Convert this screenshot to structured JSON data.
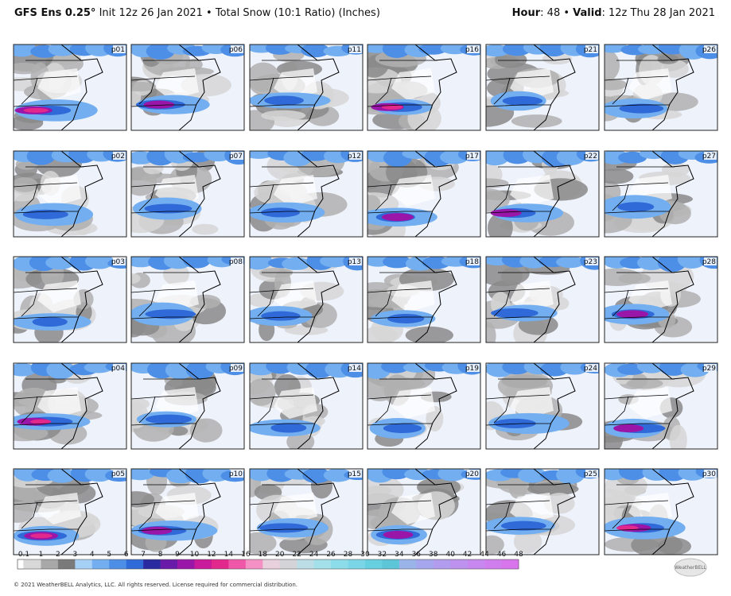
{
  "header": {
    "model": "GFS Ens 0.25°",
    "description": "Init 12z 26 Jan 2021 • Total Snow (10:1 Ratio) (Inches)",
    "hour_label": "Hour",
    "hour_value": ": 48 •",
    "valid_label": "Valid",
    "valid_value": ": 12z Thu 28 Jan 2021"
  },
  "panels": [
    "p01",
    "p06",
    "p11",
    "p16",
    "p21",
    "p26",
    "p02",
    "p07",
    "p12",
    "p17",
    "p22",
    "p27",
    "p03",
    "p08",
    "p13",
    "p18",
    "p23",
    "p28",
    "p04",
    "p09",
    "p14",
    "p19",
    "p24",
    "p29",
    "p05",
    "p10",
    "p15",
    "p20",
    "p25",
    "p30"
  ],
  "colorbar": {
    "labels": [
      "0.1",
      "1",
      "2",
      "3",
      "4",
      "5",
      "6",
      "7",
      "8",
      "9",
      "10",
      "12",
      "14",
      "16",
      "18",
      "20",
      "22",
      "24",
      "26",
      "28",
      "30",
      "32",
      "34",
      "36",
      "38",
      "40",
      "42",
      "44",
      "46",
      "48"
    ],
    "colors": [
      "#d8d8d8",
      "#a8a8a8",
      "#7a7a7a",
      "#a6d0f5",
      "#72aef0",
      "#4d8fe6",
      "#2f6ad8",
      "#2a2aa0",
      "#6a1aa8",
      "#9a16a8",
      "#c81a9a",
      "#e2288c",
      "#ef58a8",
      "#f490c4",
      "#e8d0dc",
      "#d4d4d8",
      "#bcdce6",
      "#a4e0ea",
      "#8cdcea",
      "#7ad6e6",
      "#66cfe0",
      "#5cc6d8",
      "#9ab4ea",
      "#a6a6ee",
      "#b29cee",
      "#bc92ee",
      "#c688ee",
      "#d07eee",
      "#d874ec"
    ]
  },
  "footer": {
    "copyright": "© 2021 WeatherBELL Analytics, LLC. All rights reserved. License required for commercial distribution.",
    "logo": "WeatherBELL"
  }
}
